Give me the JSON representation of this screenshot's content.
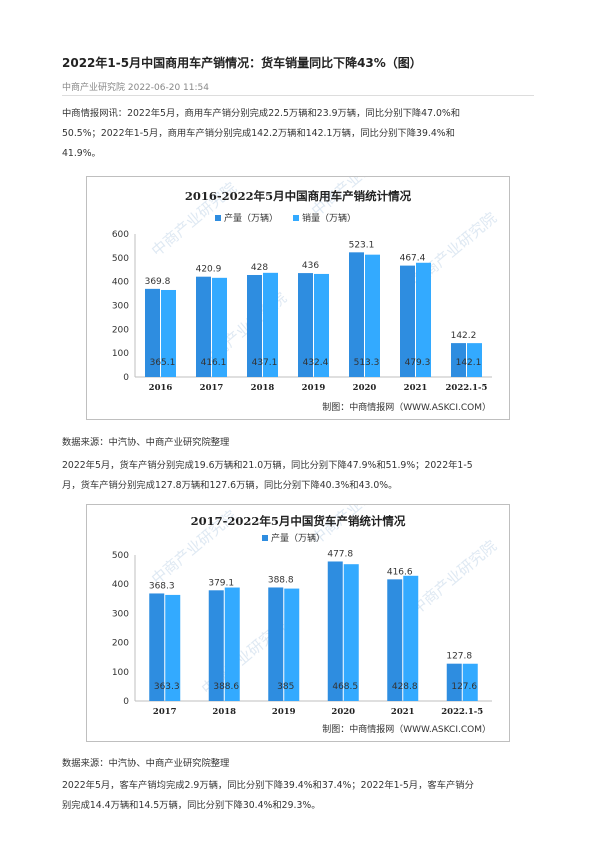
{
  "article": {
    "title": "2022年1-5月中国商用车产销情况：货车销量同比下降43%（图）",
    "meta": "中商产业研究院 2022-06-20 11:54",
    "para1_line1": "中商情报网讯：2022年5月，商用车产销分别完成22.5万辆和23.9万辆，同比分别下降47.0%和",
    "para1_line2": "50.5%；2022年1-5月，商用车产销分别完成142.2万辆和142.1万辆，同比分别下降39.4%和",
    "para1_line3": "41.9%。",
    "source1": "数据来源：中汽协、中商产业研究院整理",
    "para2_line1": "2022年5月，货车产销分别完成19.6万辆和21.0万辆，同比分别下降47.9%和51.9%；2022年1-5",
    "para2_line2": "月，货车产销分别完成127.8万辆和127.6万辆，同比分别下降40.3%和43.0%。",
    "source2": "数据来源：中汽协、中商产业研究院整理",
    "para3_line1": "2022年5月，客车产销均完成2.9万辆，同比分别下降39.4%和37.4%；2022年1-5月，客车产销分",
    "para3_line2": "别完成14.4万辆和14.5万辆，同比分别下降30.4%和29.3%。"
  },
  "colors": {
    "production": "#2e8de0",
    "sales": "#33aaff",
    "text": "#333333"
  },
  "watermark": "中商产业研究院",
  "chart_data": [
    {
      "type": "bar",
      "title": "2016-2022年5月中国商用车产销统计情况",
      "categories": [
        "2016",
        "2017",
        "2018",
        "2019",
        "2020",
        "2021",
        "2022.1-5"
      ],
      "series": [
        {
          "name": "产量（万辆）",
          "values": [
            369.8,
            420.9,
            428,
            436,
            523.1,
            467.4,
            142.2
          ]
        },
        {
          "name": "销量（万辆）",
          "values": [
            365.1,
            416.1,
            437.1,
            432.4,
            513.3,
            479.3,
            142.1
          ]
        }
      ],
      "ylim": [
        0,
        600
      ],
      "yticks": [
        0,
        100,
        200,
        300,
        400,
        500,
        600
      ],
      "credit": "制图：中商情报网（WWW.ASKCI.COM）"
    },
    {
      "type": "bar",
      "title": "2017-2022年5月中国货车产销统计情况",
      "categories": [
        "2017",
        "2018",
        "2019",
        "2020",
        "2021",
        "2022.1-5"
      ],
      "series": [
        {
          "name": "产量（万辆）",
          "values": [
            368.3,
            379.1,
            388.8,
            477.8,
            416.6,
            127.8
          ]
        },
        {
          "name": "",
          "values": [
            363.3,
            388.6,
            385,
            468.5,
            428.8,
            127.6
          ]
        }
      ],
      "ylim": [
        0,
        500
      ],
      "yticks": [
        0,
        100,
        200,
        300,
        400,
        500
      ],
      "credit": "制图：中商情报网（WWW.ASKCI.COM）"
    }
  ]
}
